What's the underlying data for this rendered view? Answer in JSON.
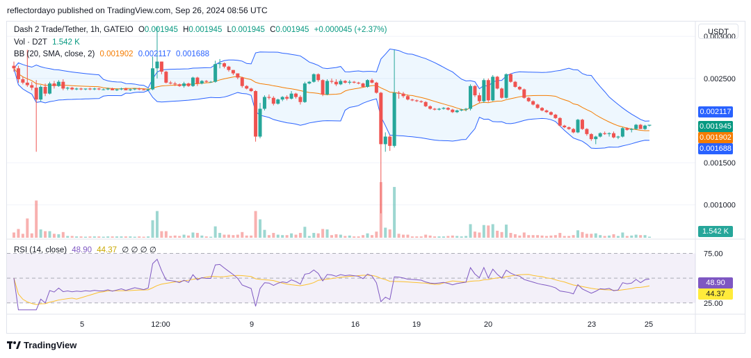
{
  "header": {
    "published": "reflectordayo published on TradingView.com, Sep 26, 2024 08:56 UTC"
  },
  "legend": {
    "symbol": "Dash 2 Trade/Tether, 1h, GATEIO",
    "o_label": "O",
    "o_value": "0.001945",
    "h_label": "H",
    "h_value": "0.001945",
    "l_label": "L",
    "l_value": "0.001945",
    "c_label": "C",
    "c_value": "0.001945",
    "change": "+0.000045 (+2.37%)",
    "vol_label": "Vol · D2T",
    "vol_value": "1.542 K",
    "bb_label": "BB (20, SMA, close, 2)",
    "bb_basis": "0.001902",
    "bb_upper": "0.002117",
    "bb_lower": "0.001688",
    "rsi_label": "RSI (14, close)",
    "rsi_value": "48.90",
    "rsi_ma": "44.37",
    "rsi_extra": "∅ ∅ ∅ ∅"
  },
  "currency_button": "USDT",
  "price_axis": {
    "ticks": [
      {
        "label": "0.003000",
        "value": 0.003
      },
      {
        "label": "0.002500",
        "value": 0.0025
      },
      {
        "label": "0.001500",
        "value": 0.0015
      },
      {
        "label": "0.001000",
        "value": 0.001
      }
    ],
    "tags": [
      {
        "label": "0.002117",
        "value": 0.002117,
        "color": "#2962ff"
      },
      {
        "label": "0.001945",
        "value": 0.001945,
        "color": "#089981"
      },
      {
        "label": "0.001902",
        "value": 0.001902,
        "color": "#f57c00"
      },
      {
        "label": "0.001688",
        "value": 0.001688,
        "color": "#2962ff"
      }
    ],
    "volume_tag": {
      "label": "1.542 K",
      "color": "#26a69a"
    }
  },
  "rsi_axis": {
    "ticks": [
      {
        "label": "75.00",
        "value": 75
      },
      {
        "label": "25.00",
        "value": 25
      }
    ],
    "tags": [
      {
        "label": "48.90",
        "value": 48.9,
        "color": "#7e57c2"
      },
      {
        "label": "44.37",
        "value": 44.37,
        "color": "#ffeb3b"
      }
    ]
  },
  "time_axis": [
    "5",
    "12:00",
    "9",
    "16",
    "19",
    "20",
    "23",
    "25"
  ],
  "branding": "TradingView",
  "chart_data": {
    "type": "candlestick",
    "title": "Dash 2 Trade/Tether, 1h, GATEIO",
    "price_range": [
      0.00061,
      0.00315
    ],
    "rsi_range": [
      15,
      88
    ],
    "candles": [
      [
        0.00265,
        0.0027,
        0.00258,
        0.00262
      ],
      [
        0.00262,
        0.00265,
        0.00245,
        0.00249
      ],
      [
        0.00249,
        0.00252,
        0.00243,
        0.00245
      ],
      [
        0.00245,
        0.00284,
        0.0024,
        0.00242
      ],
      [
        0.00242,
        0.00246,
        0.00236,
        0.00239
      ],
      [
        0.00239,
        0.00248,
        0.00163,
        0.00225
      ],
      [
        0.00225,
        0.00242,
        0.00223,
        0.0024
      ],
      [
        0.0024,
        0.00244,
        0.00229,
        0.00232
      ],
      [
        0.00232,
        0.00246,
        0.00231,
        0.00244
      ],
      [
        0.00244,
        0.00247,
        0.00238,
        0.00241
      ],
      [
        0.00241,
        0.00248,
        0.0024,
        0.00246
      ],
      [
        0.00246,
        0.00249,
        0.00236,
        0.00238
      ],
      [
        0.00238,
        0.0024,
        0.00236,
        0.00239
      ],
      [
        0.00239,
        0.0024,
        0.00236,
        0.00237
      ],
      [
        0.00237,
        0.00239,
        0.00236,
        0.00238
      ],
      [
        0.00238,
        0.00239,
        0.00236,
        0.00237
      ],
      [
        0.00237,
        0.00238,
        0.00236,
        0.00238
      ],
      [
        0.00238,
        0.00239,
        0.00236,
        0.00237
      ],
      [
        0.00237,
        0.00239,
        0.00236,
        0.00238
      ],
      [
        0.00238,
        0.00239,
        0.00236,
        0.00237
      ],
      [
        0.00237,
        0.00238,
        0.00236,
        0.00237
      ],
      [
        0.00237,
        0.00239,
        0.00236,
        0.00238
      ],
      [
        0.00238,
        0.00239,
        0.00236,
        0.00236
      ],
      [
        0.00236,
        0.00238,
        0.00235,
        0.00237
      ],
      [
        0.00237,
        0.00239,
        0.00236,
        0.00238
      ],
      [
        0.00238,
        0.00239,
        0.00236,
        0.00236
      ],
      [
        0.00236,
        0.00238,
        0.00235,
        0.00237
      ],
      [
        0.00237,
        0.00238,
        0.00236,
        0.00238
      ],
      [
        0.00238,
        0.00239,
        0.00236,
        0.00237
      ],
      [
        0.00237,
        0.00238,
        0.00236,
        0.00236
      ],
      [
        0.00236,
        0.00238,
        0.00235,
        0.00237
      ],
      [
        0.00237,
        0.00276,
        0.00236,
        0.00262
      ],
      [
        0.00262,
        0.00311,
        0.0025,
        0.0027
      ],
      [
        0.0027,
        0.0027,
        0.00255,
        0.00258
      ],
      [
        0.00258,
        0.00259,
        0.00244,
        0.00245
      ],
      [
        0.00245,
        0.00247,
        0.00243,
        0.00244
      ],
      [
        0.00244,
        0.00246,
        0.00241,
        0.00243
      ],
      [
        0.00243,
        0.00244,
        0.0024,
        0.00241
      ],
      [
        0.00241,
        0.00246,
        0.00239,
        0.00244
      ],
      [
        0.00244,
        0.00245,
        0.0024,
        0.00241
      ],
      [
        0.00241,
        0.00252,
        0.0024,
        0.00251
      ],
      [
        0.00251,
        0.00252,
        0.00241,
        0.00244
      ],
      [
        0.00244,
        0.00248,
        0.00243,
        0.00247
      ],
      [
        0.00247,
        0.00248,
        0.00245,
        0.00246
      ],
      [
        0.00246,
        0.00247,
        0.00245,
        0.00246
      ],
      [
        0.00246,
        0.00271,
        0.00245,
        0.00267
      ],
      [
        0.00267,
        0.00273,
        0.00262,
        0.00268
      ],
      [
        0.00268,
        0.00269,
        0.00262,
        0.00264
      ],
      [
        0.00264,
        0.00265,
        0.00258,
        0.0026
      ],
      [
        0.0026,
        0.0026,
        0.00254,
        0.00256
      ],
      [
        0.00256,
        0.00256,
        0.00249,
        0.00251
      ],
      [
        0.00251,
        0.00252,
        0.00239,
        0.00241
      ],
      [
        0.00241,
        0.00242,
        0.00237,
        0.00238
      ],
      [
        0.00238,
        0.00239,
        0.00234,
        0.00235
      ],
      [
        0.00235,
        0.00236,
        0.00175,
        0.00181
      ],
      [
        0.00181,
        0.00221,
        0.00179,
        0.00214
      ],
      [
        0.00214,
        0.0023,
        0.00212,
        0.00228
      ],
      [
        0.00228,
        0.00231,
        0.00225,
        0.00227
      ],
      [
        0.00227,
        0.00229,
        0.00218,
        0.0022
      ],
      [
        0.0022,
        0.00226,
        0.00219,
        0.00225
      ],
      [
        0.00225,
        0.00229,
        0.00223,
        0.00228
      ],
      [
        0.00228,
        0.0023,
        0.00224,
        0.00226
      ],
      [
        0.00226,
        0.00235,
        0.00225,
        0.00232
      ],
      [
        0.00232,
        0.00233,
        0.00226,
        0.00228
      ],
      [
        0.00228,
        0.0023,
        0.00219,
        0.00222
      ],
      [
        0.00222,
        0.00246,
        0.00221,
        0.00244
      ],
      [
        0.00244,
        0.00247,
        0.00243,
        0.00246
      ],
      [
        0.00246,
        0.00256,
        0.00245,
        0.00255
      ],
      [
        0.00255,
        0.00256,
        0.00246,
        0.00248
      ],
      [
        0.00248,
        0.00249,
        0.00229,
        0.00231
      ],
      [
        0.00231,
        0.00249,
        0.0023,
        0.00247
      ],
      [
        0.00247,
        0.0025,
        0.00244,
        0.00246
      ],
      [
        0.00246,
        0.00249,
        0.00241,
        0.00243
      ],
      [
        0.00243,
        0.00249,
        0.00242,
        0.00247
      ],
      [
        0.00247,
        0.00248,
        0.00244,
        0.00245
      ],
      [
        0.00245,
        0.00248,
        0.00243,
        0.00246
      ],
      [
        0.00246,
        0.00247,
        0.00244,
        0.00245
      ],
      [
        0.00245,
        0.00246,
        0.00243,
        0.00244
      ],
      [
        0.00244,
        0.00245,
        0.00239,
        0.0024
      ],
      [
        0.0024,
        0.00249,
        0.00239,
        0.00248
      ],
      [
        0.00248,
        0.0025,
        0.00244,
        0.00245
      ],
      [
        0.00245,
        0.00246,
        0.00232,
        0.00233
      ],
      [
        0.00233,
        0.00234,
        0.0009,
        0.00172
      ],
      [
        0.00172,
        0.00186,
        0.00163,
        0.00181
      ],
      [
        0.00181,
        0.00183,
        0.00164,
        0.0017
      ],
      [
        0.0017,
        0.00284,
        0.00168,
        0.00233
      ],
      [
        0.00233,
        0.00235,
        0.00226,
        0.00232
      ],
      [
        0.00232,
        0.00234,
        0.00227,
        0.00229
      ],
      [
        0.00229,
        0.00231,
        0.00224,
        0.00225
      ],
      [
        0.00225,
        0.00226,
        0.00223,
        0.00224
      ],
      [
        0.00224,
        0.00225,
        0.00222,
        0.00223
      ],
      [
        0.00223,
        0.00224,
        0.00221,
        0.00222
      ],
      [
        0.00222,
        0.00223,
        0.00216,
        0.00217
      ],
      [
        0.00217,
        0.00218,
        0.00213,
        0.00214
      ],
      [
        0.00214,
        0.00215,
        0.00212,
        0.00213
      ],
      [
        0.00213,
        0.00215,
        0.00212,
        0.00214
      ],
      [
        0.00214,
        0.00216,
        0.00213,
        0.00215
      ],
      [
        0.00215,
        0.00216,
        0.00212,
        0.00213
      ],
      [
        0.00213,
        0.00214,
        0.00209,
        0.0021
      ],
      [
        0.0021,
        0.00213,
        0.00209,
        0.00212
      ],
      [
        0.00212,
        0.00214,
        0.00211,
        0.00213
      ],
      [
        0.00213,
        0.00215,
        0.00211,
        0.00214
      ],
      [
        0.00214,
        0.00243,
        0.00212,
        0.00241
      ],
      [
        0.00241,
        0.00242,
        0.00228,
        0.0023
      ],
      [
        0.0023,
        0.00233,
        0.00221,
        0.00223
      ],
      [
        0.00223,
        0.0025,
        0.00221,
        0.00248
      ],
      [
        0.00248,
        0.0025,
        0.00222,
        0.00224
      ],
      [
        0.00224,
        0.00254,
        0.00223,
        0.00252
      ],
      [
        0.00252,
        0.00253,
        0.00237,
        0.00238
      ],
      [
        0.00238,
        0.00239,
        0.00226,
        0.00227
      ],
      [
        0.00227,
        0.00256,
        0.00226,
        0.00255
      ],
      [
        0.00255,
        0.00256,
        0.00245,
        0.00246
      ],
      [
        0.00246,
        0.00247,
        0.00239,
        0.0024
      ],
      [
        0.0024,
        0.00241,
        0.00236,
        0.00237
      ],
      [
        0.00237,
        0.00238,
        0.00226,
        0.00227
      ],
      [
        0.00227,
        0.00228,
        0.00222,
        0.00223
      ],
      [
        0.00223,
        0.00224,
        0.00218,
        0.00219
      ],
      [
        0.00219,
        0.0022,
        0.00214,
        0.00215
      ],
      [
        0.00215,
        0.00216,
        0.00211,
        0.00212
      ],
      [
        0.00212,
        0.00213,
        0.00209,
        0.0021
      ],
      [
        0.0021,
        0.00211,
        0.00206,
        0.00207
      ],
      [
        0.00207,
        0.00208,
        0.00202,
        0.00203
      ],
      [
        0.00203,
        0.00204,
        0.00193,
        0.00194
      ],
      [
        0.00194,
        0.00195,
        0.00191,
        0.00192
      ],
      [
        0.00192,
        0.00193,
        0.00189,
        0.0019
      ],
      [
        0.0019,
        0.00191,
        0.00185,
        0.00186
      ],
      [
        0.00186,
        0.00202,
        0.00185,
        0.00201
      ],
      [
        0.00201,
        0.00202,
        0.00189,
        0.0019
      ],
      [
        0.0019,
        0.00191,
        0.00182,
        0.00184
      ],
      [
        0.00184,
        0.00185,
        0.00176,
        0.00178
      ],
      [
        0.00178,
        0.00182,
        0.00172,
        0.00181
      ],
      [
        0.00181,
        0.00186,
        0.0018,
        0.00185
      ],
      [
        0.00185,
        0.00187,
        0.00183,
        0.00184
      ],
      [
        0.00184,
        0.00186,
        0.00181,
        0.00185
      ],
      [
        0.00185,
        0.00187,
        0.00179,
        0.0018
      ],
      [
        0.0018,
        0.00182,
        0.00178,
        0.00181
      ],
      [
        0.00181,
        0.00192,
        0.0018,
        0.00191
      ],
      [
        0.00191,
        0.00192,
        0.00188,
        0.00189
      ],
      [
        0.00189,
        0.00191,
        0.00186,
        0.0019
      ],
      [
        0.0019,
        0.00196,
        0.00189,
        0.00195
      ],
      [
        0.00195,
        0.00196,
        0.0019,
        0.0019
      ],
      [
        0.0019,
        0.00195,
        0.00189,
        0.00194
      ],
      [
        0.00194,
        0.00195,
        0.00193,
        0.00195
      ]
    ],
    "volume_tail": 1.542
  }
}
